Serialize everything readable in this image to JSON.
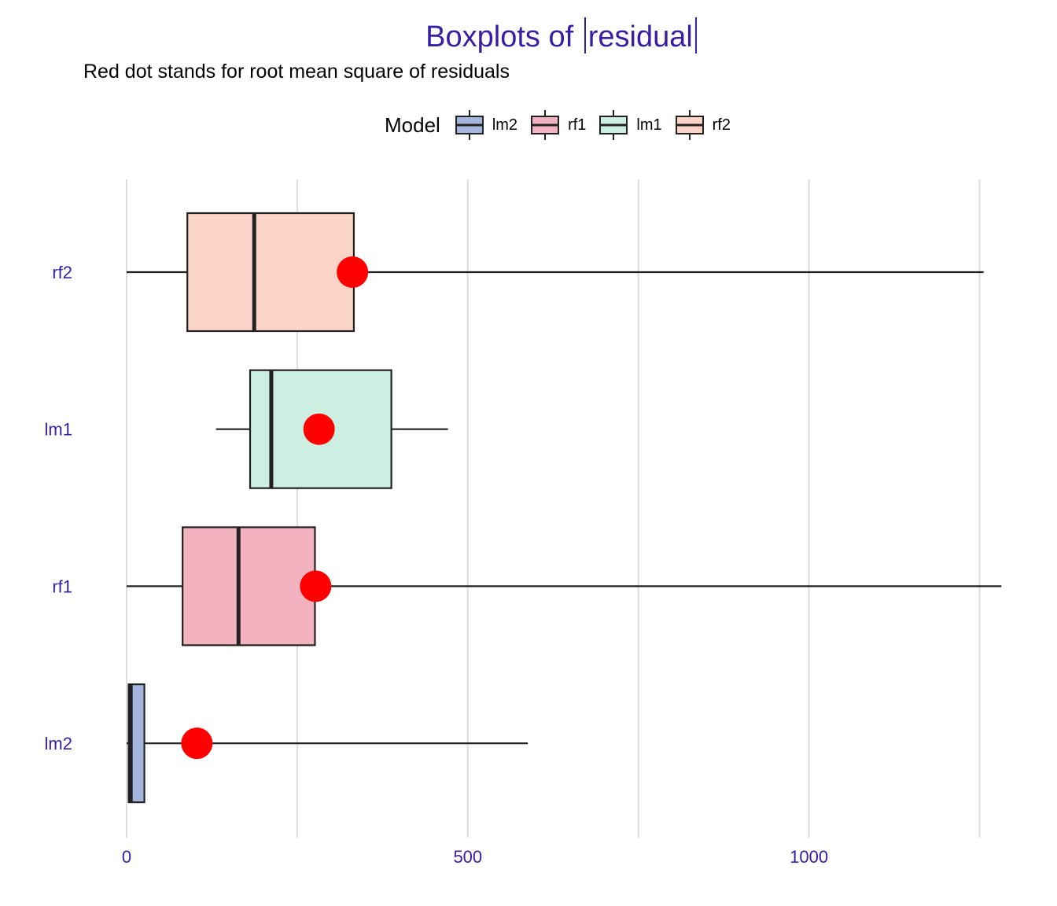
{
  "chart_data": {
    "type": "boxplot",
    "title_main": "Boxplots of",
    "title_term": "residual",
    "subtitle": "Red dot stands for root mean square of residuals",
    "legend_title": "Model",
    "legend_position": "top",
    "legend": [
      "lm2",
      "rf1",
      "lm1",
      "rf2"
    ],
    "xlim": [
      0,
      1285
    ],
    "x_ticks": [
      0,
      500,
      1000
    ],
    "minor_grid": [
      250,
      750,
      1250
    ],
    "grid": "vertical",
    "colors": {
      "lm2": "#a5b6de",
      "rf1": "#f3b2c0",
      "lm1": "#ccefe2",
      "rf2": "#fdd4c8",
      "rms_dot": "#ff0000",
      "axis_text": "#371ea3",
      "grid": "#dddddd",
      "outline": "#222222"
    },
    "categories": [
      "rf2",
      "lm1",
      "rf1",
      "lm2"
    ],
    "series": [
      {
        "name": "rf2",
        "whisker_low": 0,
        "q1": 89,
        "median": 187,
        "q3": 333,
        "whisker_high": 1256,
        "rms": 331
      },
      {
        "name": "lm1",
        "whisker_low": 131,
        "q1": 181,
        "median": 212,
        "q3": 388,
        "whisker_high": 471,
        "rms": 282
      },
      {
        "name": "rf1",
        "whisker_low": 0,
        "q1": 82,
        "median": 164,
        "q3": 276,
        "whisker_high": 1282,
        "rms": 277
      },
      {
        "name": "lm2",
        "whisker_low": 0,
        "q1": 3,
        "median": 6,
        "q3": 26,
        "whisker_high": 588,
        "rms": 103
      }
    ]
  }
}
